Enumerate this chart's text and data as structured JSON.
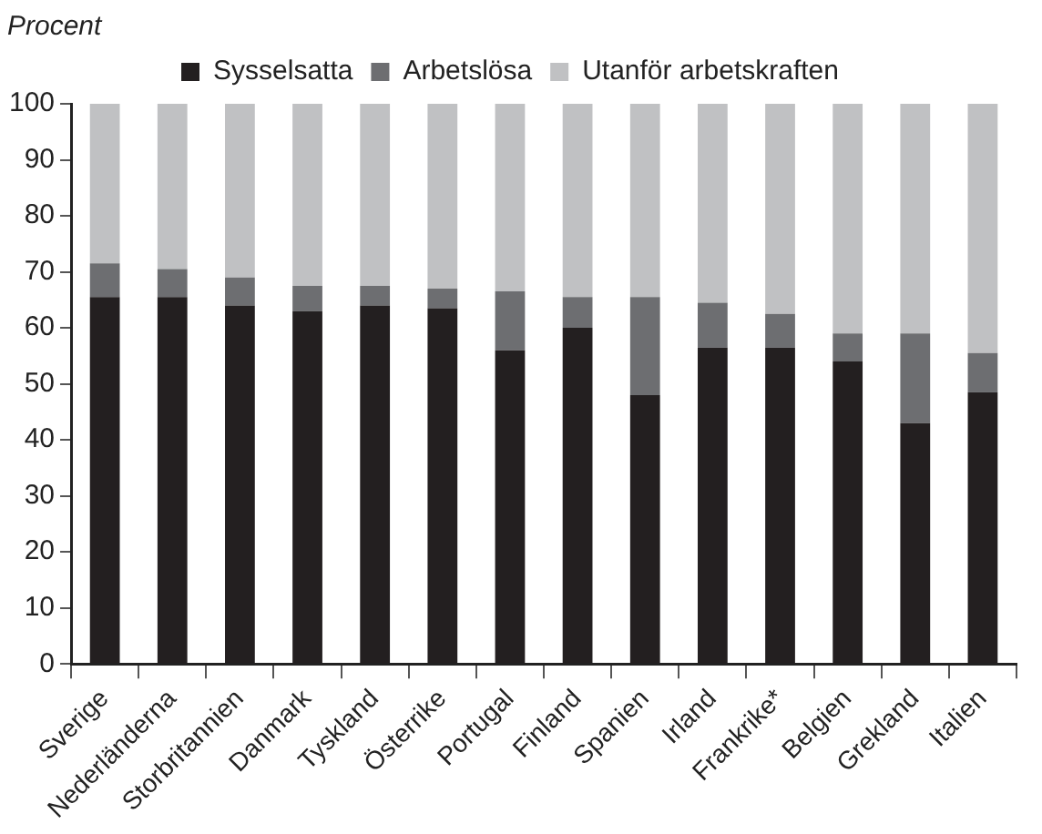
{
  "chart_data": {
    "type": "bar",
    "stacked": true,
    "ylabel": "Procent",
    "categories": [
      "Sverige",
      "Nederländerna",
      "Storbritannien",
      "Danmark",
      "Tyskland",
      "Österrike",
      "Portugal",
      "Finland",
      "Spanien",
      "Irland",
      "Frankrike*",
      "Belgien",
      "Grekland",
      "Italien"
    ],
    "series": [
      {
        "name": "Sysselsatta",
        "color": "#231f20",
        "values": [
          65.5,
          65.5,
          64,
          63,
          64,
          63.5,
          56,
          60,
          48,
          56.5,
          56.5,
          54,
          43,
          48.5
        ]
      },
      {
        "name": "Arbetslösa",
        "color": "#6d6e71",
        "values": [
          6,
          5,
          5,
          4.5,
          3.5,
          3.5,
          10.5,
          5.5,
          17.5,
          8,
          6,
          5,
          16,
          7
        ]
      },
      {
        "name": "Utanför arbetskraften",
        "color": "#c0c1c3",
        "values": [
          28.5,
          29.5,
          31,
          32.5,
          32.5,
          33,
          33.5,
          34.5,
          34.5,
          35.5,
          37.5,
          41,
          41,
          44.5
        ]
      }
    ],
    "ylim": [
      0,
      100
    ],
    "yticks": [
      0,
      10,
      20,
      30,
      40,
      50,
      60,
      70,
      80,
      90,
      100
    ],
    "grid": false,
    "legend": "top"
  }
}
